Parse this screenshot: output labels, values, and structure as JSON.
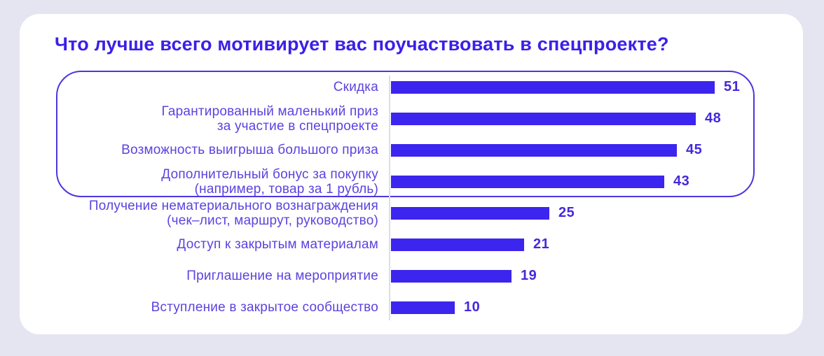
{
  "colors": {
    "background": "#E4E5F0",
    "card": "#FFFFFF",
    "bar": "#3C25EE",
    "title": "#3A20E8",
    "label": "#5B43DF",
    "value": "#4429DC",
    "highlight_border": "#4B36E0",
    "axis_line": "#DEDEE9"
  },
  "chart_data": {
    "type": "bar",
    "orientation": "horizontal",
    "title": "Что лучше всего мотивирует вас поучаствовать в спецпроекте?",
    "categories": [
      "Скидка",
      "Гарантированный маленький приз\nза участие в спецпроекте",
      "Возможность выигрыша большого приза",
      "Дополнительный бонус за покупку\n(например, товар за 1 рубль)",
      "Получение нематериального вознаграждения\n(чек–лист, маршрут, руководство)",
      "Доступ к закрытым материалам",
      "Приглашение на мероприятие",
      "Вступление в закрытое сообщество"
    ],
    "values": [
      51,
      48,
      45,
      43,
      25,
      21,
      19,
      10
    ],
    "value_range": [
      0,
      51
    ],
    "data_labels": true,
    "legend": "none",
    "grid": "off",
    "highlighted_top_n": 4
  }
}
